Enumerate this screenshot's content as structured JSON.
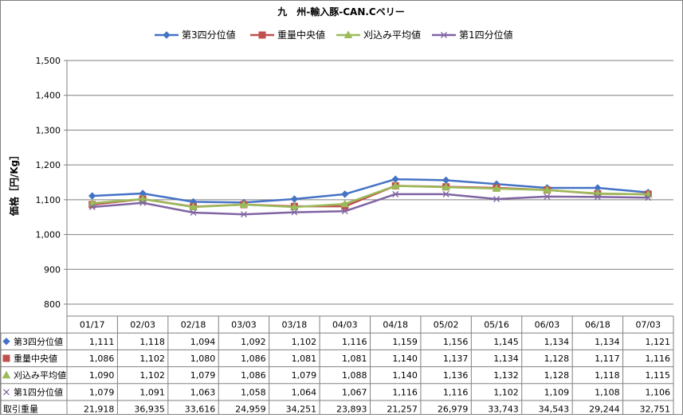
{
  "chart_data": {
    "type": "line",
    "title": "九　州-輸入豚-CAN.Cベリー",
    "ylabel": "価格［円/Kg］",
    "ylim": [
      800,
      1500
    ],
    "y_ticks": [
      "800",
      "900",
      "1,000",
      "1,100",
      "1,200",
      "1,300",
      "1,400",
      "1,500"
    ],
    "y_tick_values": [
      800,
      900,
      1000,
      1100,
      1200,
      1300,
      1400,
      1500
    ],
    "grid": true,
    "legend_position": "top",
    "categories": [
      "01/17",
      "02/03",
      "02/18",
      "03/03",
      "03/18",
      "04/03",
      "04/18",
      "05/02",
      "05/16",
      "06/03",
      "06/18",
      "07/03"
    ],
    "series": [
      {
        "name": "第3四分位値",
        "color": "#4472C4",
        "marker": "diamond",
        "values": [
          1111,
          1118,
          1094,
          1092,
          1102,
          1116,
          1159,
          1156,
          1145,
          1134,
          1134,
          1121
        ],
        "labels": [
          "1,111",
          "1,118",
          "1,094",
          "1,092",
          "1,102",
          "1,116",
          "1,159",
          "1,156",
          "1,145",
          "1,134",
          "1,134",
          "1,121"
        ]
      },
      {
        "name": "重量中央値",
        "color": "#C0504D",
        "marker": "square",
        "values": [
          1086,
          1102,
          1080,
          1086,
          1081,
          1081,
          1140,
          1137,
          1134,
          1128,
          1117,
          1116
        ],
        "labels": [
          "1,086",
          "1,102",
          "1,080",
          "1,086",
          "1,081",
          "1,081",
          "1,140",
          "1,137",
          "1,134",
          "1,128",
          "1,117",
          "1,116"
        ]
      },
      {
        "name": "刈込み平均値",
        "color": "#9BBB59",
        "marker": "triangle",
        "values": [
          1090,
          1102,
          1079,
          1086,
          1079,
          1088,
          1140,
          1136,
          1132,
          1128,
          1118,
          1115
        ],
        "labels": [
          "1,090",
          "1,102",
          "1,079",
          "1,086",
          "1,079",
          "1,088",
          "1,140",
          "1,136",
          "1,132",
          "1,128",
          "1,118",
          "1,115"
        ]
      },
      {
        "name": "第1四分位値",
        "color": "#8064A2",
        "marker": "x",
        "values": [
          1079,
          1091,
          1063,
          1058,
          1064,
          1067,
          1116,
          1116,
          1102,
          1109,
          1108,
          1106
        ],
        "labels": [
          "1,079",
          "1,091",
          "1,063",
          "1,058",
          "1,064",
          "1,067",
          "1,116",
          "1,116",
          "1,102",
          "1,109",
          "1,108",
          "1,106"
        ]
      }
    ],
    "volume_row": {
      "name": "取引重量",
      "values": [
        21918,
        36935,
        33616,
        24959,
        34251,
        23893,
        21257,
        26979,
        33743,
        34543,
        29244,
        32751
      ],
      "labels": [
        "21,918",
        "36,935",
        "33,616",
        "24,959",
        "34,251",
        "23,893",
        "21,257",
        "26,979",
        "33,743",
        "34,543",
        "29,244",
        "32,751"
      ]
    }
  }
}
